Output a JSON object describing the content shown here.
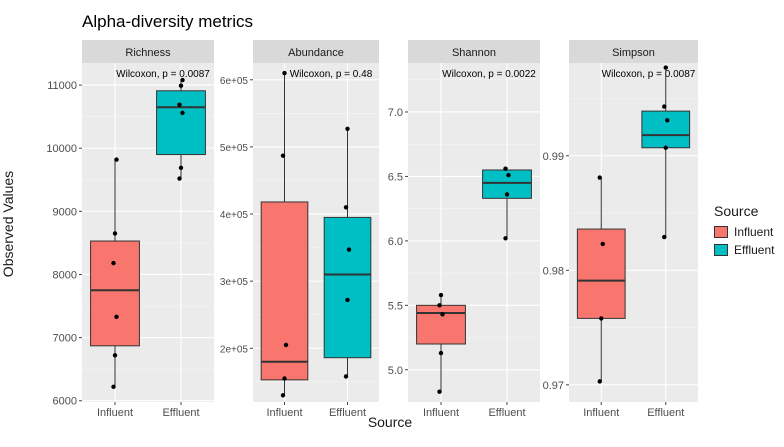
{
  "chart_data": {
    "title": "Alpha-diversity metrics",
    "type": "box",
    "xlabel": "Source",
    "ylabel": "Observed Values",
    "categories": [
      "Influent",
      "Effluent"
    ],
    "legend": {
      "title": "Source",
      "position": "right",
      "entries": [
        {
          "label": "Influent",
          "color": "#F8766D"
        },
        {
          "label": "Effluent",
          "color": "#00BFC4"
        }
      ]
    },
    "panels": [
      {
        "name": "Richness",
        "annotation": "Wilcoxon, p = 0.0087",
        "ylim": [
          5980,
          11350
        ],
        "ticks": [
          6000,
          7000,
          8000,
          9000,
          10000,
          11000
        ],
        "tick_labels": [
          "6000",
          "7000",
          "8000",
          "9000",
          "10000",
          "11000"
        ],
        "boxes": [
          {
            "group": "Influent",
            "min": 6220,
            "q1": 6870,
            "median": 7750,
            "q3": 8530,
            "max": 9820,
            "points": [
              6220,
              6720,
              7330,
              8180,
              8650,
              9820
            ]
          },
          {
            "group": "Effluent",
            "min": 9520,
            "q1": 9900,
            "median": 10650,
            "q3": 10910,
            "max": 11080,
            "points": [
              9520,
              9690,
              10560,
              10690,
              10990,
              11080
            ]
          }
        ]
      },
      {
        "name": "Abundance",
        "annotation": "Wilcoxon, p = 0.48",
        "ylim": [
          120000,
          625000
        ],
        "ticks": [
          200000,
          300000,
          400000,
          500000,
          600000
        ],
        "tick_labels": [
          "2e+05",
          "3e+05",
          "4e+05",
          "5e+05",
          "6e+05"
        ],
        "boxes": [
          {
            "group": "Influent",
            "min": 130000,
            "q1": 153000,
            "median": 180000,
            "q3": 418000,
            "max": 610000,
            "points": [
              130000,
              155000,
              205000,
              487000,
              610000
            ]
          },
          {
            "group": "Effluent",
            "min": 158000,
            "q1": 186000,
            "median": 310000,
            "q3": 395000,
            "max": 527000,
            "points": [
              158000,
              272000,
              347000,
              410000,
              527000
            ]
          }
        ]
      },
      {
        "name": "Shannon",
        "annotation": "Wilcoxon, p = 0.0022",
        "ylim": [
          4.75,
          7.38
        ],
        "ticks": [
          5.0,
          5.5,
          6.0,
          6.5,
          7.0
        ],
        "tick_labels": [
          "5.0",
          "5.5",
          "6.0",
          "6.5",
          "7.0"
        ],
        "boxes": [
          {
            "group": "Influent",
            "min": 4.83,
            "q1": 5.2,
            "median": 5.44,
            "q3": 5.5,
            "max": 5.58,
            "points": [
              4.83,
              5.13,
              5.43,
              5.5,
              5.58
            ]
          },
          {
            "group": "Effluent",
            "min": 6.02,
            "q1": 6.33,
            "median": 6.45,
            "q3": 6.55,
            "max": 6.57,
            "points": [
              6.02,
              6.36,
              6.51,
              6.56
            ]
          }
        ]
      },
      {
        "name": "Simpson",
        "annotation": "Wilcoxon, p = 0.0087",
        "ylim": [
          0.9685,
          0.9981
        ],
        "ticks": [
          0.97,
          0.98,
          0.99
        ],
        "tick_labels": [
          "0.97",
          "0.98",
          "0.99"
        ],
        "boxes": [
          {
            "group": "Influent",
            "min": 0.9703,
            "q1": 0.9758,
            "median": 0.9791,
            "q3": 0.9836,
            "max": 0.9881,
            "points": [
              0.9703,
              0.9758,
              0.9823,
              0.9881
            ]
          },
          {
            "group": "Effluent",
            "min": 0.9829,
            "q1": 0.9907,
            "median": 0.9918,
            "q3": 0.9939,
            "max": 0.9977,
            "points": [
              0.9829,
              0.9907,
              0.9931,
              0.9943,
              0.9977
            ]
          }
        ]
      }
    ]
  }
}
